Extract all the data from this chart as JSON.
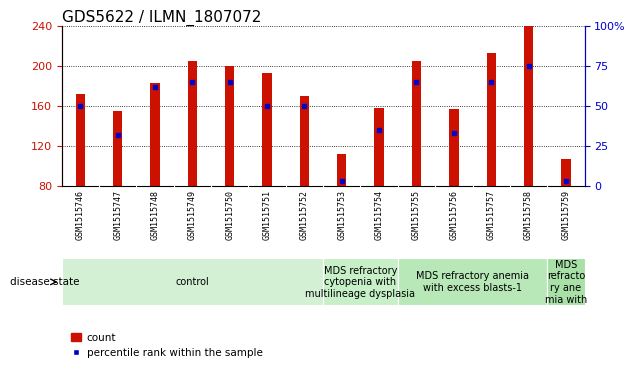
{
  "title": "GDS5622 / ILMN_1807072",
  "samples": [
    "GSM1515746",
    "GSM1515747",
    "GSM1515748",
    "GSM1515749",
    "GSM1515750",
    "GSM1515751",
    "GSM1515752",
    "GSM1515753",
    "GSM1515754",
    "GSM1515755",
    "GSM1515756",
    "GSM1515757",
    "GSM1515758",
    "GSM1515759"
  ],
  "counts": [
    172,
    155,
    183,
    205,
    200,
    193,
    170,
    112,
    158,
    205,
    157,
    213,
    240,
    107
  ],
  "percentile_ranks": [
    50,
    32,
    62,
    65,
    65,
    50,
    50,
    3,
    35,
    65,
    33,
    65,
    75,
    3
  ],
  "ymin": 80,
  "ymax": 240,
  "yright_min": 0,
  "yright_max": 100,
  "yticks_left": [
    80,
    120,
    160,
    200,
    240
  ],
  "yticks_right": [
    0,
    25,
    50,
    75,
    100
  ],
  "ytick_right_labels": [
    "0",
    "25",
    "50",
    "75",
    "100%"
  ],
  "bar_color": "#CC1100",
  "marker_color": "#0000CC",
  "bar_width": 0.25,
  "disease_groups": [
    {
      "label": "control",
      "start": 0,
      "end": 7,
      "color": "#d4f0d4"
    },
    {
      "label": "MDS refractory\ncytopenia with\nmultilineage dysplasia",
      "start": 7,
      "end": 9,
      "color": "#c8f0c8"
    },
    {
      "label": "MDS refractory anemia\nwith excess blasts-1",
      "start": 9,
      "end": 13,
      "color": "#b8e8b8"
    },
    {
      "label": "MDS\nrefracto\nry ane\nmia with",
      "start": 13,
      "end": 14,
      "color": "#a8e0a8"
    }
  ],
  "disease_state_label": "disease state",
  "legend_count_label": "count",
  "legend_percentile_label": "percentile rank within the sample",
  "xtick_bg": "#c8c8c8",
  "title_fontsize": 11,
  "tick_fontsize": 8,
  "sample_fontsize": 6,
  "disease_fontsize": 7
}
